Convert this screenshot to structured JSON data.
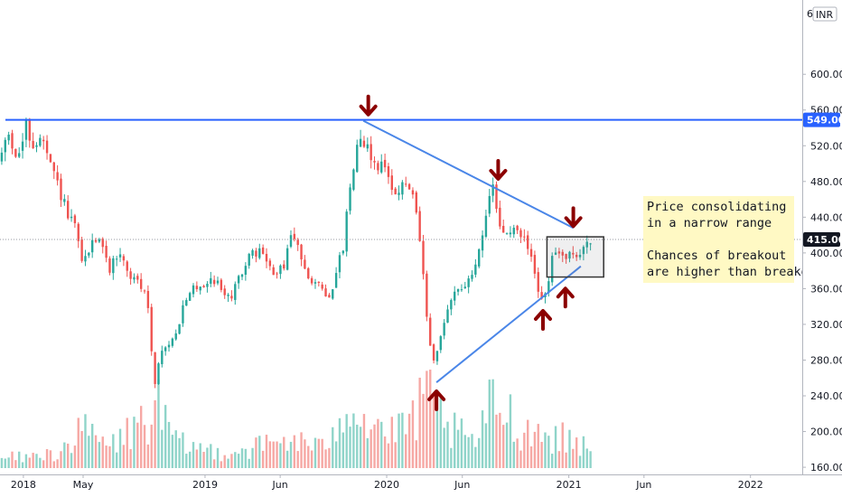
{
  "chart_data": {
    "type": "candlestick",
    "currency": "INR",
    "currency_top_fragment": "6",
    "price_axis": {
      "ylim": [
        152,
        668
      ],
      "ticks": [
        {
          "value": 600,
          "label": "600.00"
        },
        {
          "value": 560,
          "label": "560.00"
        },
        {
          "value": 520,
          "label": "520.00"
        },
        {
          "value": 480,
          "label": "480.00"
        },
        {
          "value": 440,
          "label": "440.00"
        },
        {
          "value": 400,
          "label": "400.00"
        },
        {
          "value": 360,
          "label": "360.00"
        },
        {
          "value": 320,
          "label": "320.00"
        },
        {
          "value": 280,
          "label": "280.00"
        },
        {
          "value": 240,
          "label": "240.00"
        },
        {
          "value": 200,
          "label": "200.00"
        },
        {
          "value": 160,
          "label": "160.00"
        }
      ]
    },
    "time_axis": {
      "range": [
        "2017-11-15",
        "2022-04-15"
      ],
      "labels": [
        {
          "date": "2018-01-01",
          "label": "2018"
        },
        {
          "date": "2018-05-01",
          "label": "May"
        },
        {
          "date": "2019-01-01",
          "label": "2019"
        },
        {
          "date": "2019-06-01",
          "label": "Jun"
        },
        {
          "date": "2020-01-01",
          "label": "2020"
        },
        {
          "date": "2020-06-01",
          "label": "Jun"
        },
        {
          "date": "2021-01-01",
          "label": "2021"
        },
        {
          "date": "2021-06-01",
          "label": "Jun"
        },
        {
          "date": "2022-01-01",
          "label": "2022"
        }
      ]
    },
    "price_path": [
      [
        "2017-11-15",
        500
      ],
      [
        "2017-12-05",
        535
      ],
      [
        "2017-12-25",
        505
      ],
      [
        "2018-01-10",
        540
      ],
      [
        "2018-01-25",
        520
      ],
      [
        "2018-02-10",
        528
      ],
      [
        "2018-02-25",
        500
      ],
      [
        "2018-03-15",
        475
      ],
      [
        "2018-04-05",
        440
      ],
      [
        "2018-04-20",
        425
      ],
      [
        "2018-05-05",
        385
      ],
      [
        "2018-05-20",
        410
      ],
      [
        "2018-06-05",
        420
      ],
      [
        "2018-06-25",
        380
      ],
      [
        "2018-07-15",
        402
      ],
      [
        "2018-08-05",
        375
      ],
      [
        "2018-08-25",
        365
      ],
      [
        "2018-09-10",
        350
      ],
      [
        "2018-09-25",
        255
      ],
      [
        "2018-10-10",
        290
      ],
      [
        "2018-10-30",
        300
      ],
      [
        "2018-11-20",
        335
      ],
      [
        "2018-12-10",
        360
      ],
      [
        "2019-01-01",
        365
      ],
      [
        "2019-01-20",
        372
      ],
      [
        "2019-02-10",
        358
      ],
      [
        "2019-02-28",
        350
      ],
      [
        "2019-03-20",
        382
      ],
      [
        "2019-04-10",
        398
      ],
      [
        "2019-04-30",
        402
      ],
      [
        "2019-05-20",
        375
      ],
      [
        "2019-06-10",
        382
      ],
      [
        "2019-06-25",
        420
      ],
      [
        "2019-07-10",
        405
      ],
      [
        "2019-07-30",
        378
      ],
      [
        "2019-08-20",
        362
      ],
      [
        "2019-09-10",
        352
      ],
      [
        "2019-09-25",
        375
      ],
      [
        "2019-10-10",
        410
      ],
      [
        "2019-10-25",
        485
      ],
      [
        "2019-11-10",
        535
      ],
      [
        "2019-11-25",
        520
      ],
      [
        "2019-12-10",
        500
      ],
      [
        "2019-12-25",
        498
      ],
      [
        "2020-01-10",
        485
      ],
      [
        "2020-01-25",
        465
      ],
      [
        "2020-02-10",
        478
      ],
      [
        "2020-02-25",
        465
      ],
      [
        "2020-03-10",
        420
      ],
      [
        "2020-03-25",
        330
      ],
      [
        "2020-04-05",
        270
      ],
      [
        "2020-04-20",
        300
      ],
      [
        "2020-05-05",
        335
      ],
      [
        "2020-05-20",
        360
      ],
      [
        "2020-06-05",
        362
      ],
      [
        "2020-06-20",
        368
      ],
      [
        "2020-07-05",
        395
      ],
      [
        "2020-07-20",
        440
      ],
      [
        "2020-08-05",
        470
      ],
      [
        "2020-08-20",
        425
      ],
      [
        "2020-09-10",
        422
      ],
      [
        "2020-09-25",
        425
      ],
      [
        "2020-10-10",
        412
      ],
      [
        "2020-10-20",
        395
      ],
      [
        "2020-11-05",
        355
      ],
      [
        "2020-11-20",
        350
      ],
      [
        "2020-12-05",
        402
      ],
      [
        "2020-12-20",
        395
      ],
      [
        "2021-01-05",
        402
      ],
      [
        "2021-01-20",
        390
      ],
      [
        "2021-02-05",
        410
      ],
      [
        "2021-02-12",
        415
      ]
    ],
    "volume": {
      "axis_max": 1000,
      "bars": [
        [
          "2018-01-01",
          40
        ],
        [
          "2018-03-01",
          55
        ],
        [
          "2018-05-01",
          140
        ],
        [
          "2018-06-20",
          80
        ],
        [
          "2018-09-25",
          220
        ],
        [
          "2018-11-01",
          90
        ],
        [
          "2019-02-01",
          60
        ],
        [
          "2019-04-01",
          75
        ],
        [
          "2019-06-20",
          110
        ],
        [
          "2019-08-20",
          70
        ],
        [
          "2019-10-10",
          280
        ],
        [
          "2019-11-10",
          190
        ],
        [
          "2020-01-15",
          120
        ],
        [
          "2020-03-25",
          260
        ],
        [
          "2020-05-01",
          150
        ],
        [
          "2020-06-20",
          90
        ],
        [
          "2020-08-05",
          270
        ],
        [
          "2020-09-15",
          160
        ],
        [
          "2020-11-10",
          130
        ],
        [
          "2021-01-05",
          100
        ]
      ]
    },
    "horizontal_levels": [
      {
        "value": 549,
        "label": "549.00",
        "color": "#2962ff",
        "style": "solid"
      },
      {
        "value": 415,
        "label": "415.00",
        "color": "#131722",
        "style": "dotted"
      }
    ],
    "trendlines": [
      {
        "start": [
          "2019-11-15",
          548
        ],
        "end": [
          "2021-01-10",
          428
        ],
        "color": "#4a86e8"
      },
      {
        "start": [
          "2020-04-10",
          255
        ],
        "end": [
          "2021-01-25",
          385
        ],
        "color": "#4a86e8"
      }
    ],
    "consolidation_box": {
      "x": [
        "2020-11-18",
        "2021-03-12"
      ],
      "y": [
        373,
        418
      ]
    },
    "arrows": [
      {
        "date": "2019-11-25",
        "price": 565,
        "direction": "down"
      },
      {
        "date": "2020-08-12",
        "price": 493,
        "direction": "down"
      },
      {
        "date": "2021-01-10",
        "price": 440,
        "direction": "down"
      },
      {
        "date": "2020-04-10",
        "price": 235,
        "direction": "up"
      },
      {
        "date": "2020-11-10",
        "price": 325,
        "direction": "up"
      },
      {
        "date": "2020-12-25",
        "price": 350,
        "direction": "up"
      }
    ],
    "annotation": {
      "lines": [
        "Price consolidating",
        "in a narrow range",
        "",
        "Chances of breakout",
        "are higher than breakdown"
      ]
    },
    "colors": {
      "up": "#26a69a",
      "down": "#ef5350",
      "volume_up": "#8fd4c9",
      "volume_down": "#f6a8a4",
      "trendline": "#4a86e8",
      "arrow": "#8b0000",
      "callout_bg": "#fff9c4",
      "price_badge_dark": "#131722",
      "price_badge_blue": "#2962ff"
    }
  }
}
